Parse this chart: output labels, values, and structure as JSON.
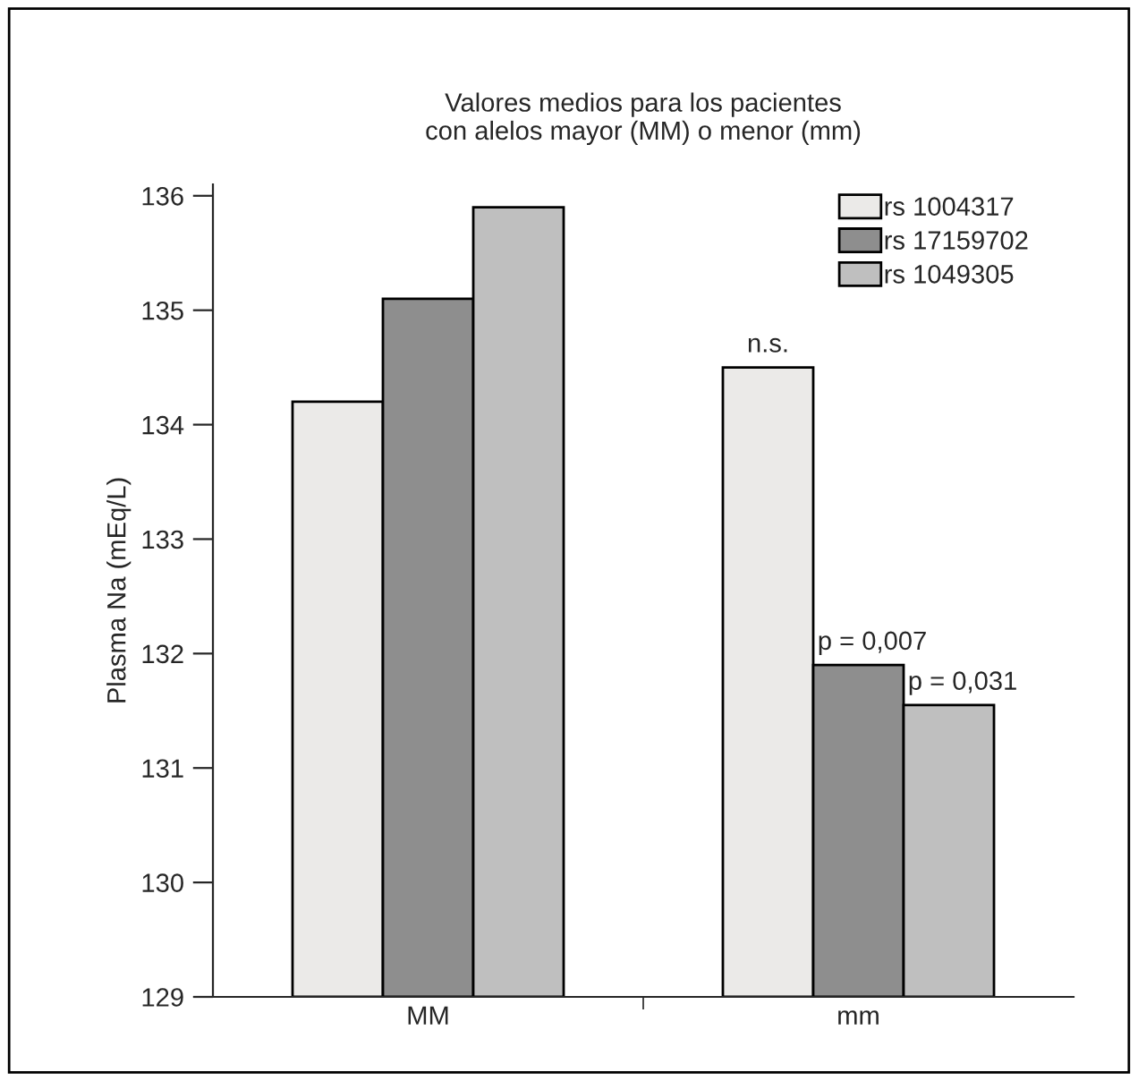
{
  "chart_data": {
    "type": "bar",
    "title": "Valores medios para los pacientes\ncon alelos mayor (MM) o menor (mm)",
    "ylabel": "Plasma Na (mEq/L)",
    "categories": [
      "MM",
      "mm"
    ],
    "series": [
      {
        "name": "rs 1004317",
        "color": "#ebeae8",
        "values": [
          134.2,
          134.5
        ]
      },
      {
        "name": "rs 17159702",
        "color": "#8e8e8e",
        "values": [
          135.1,
          131.9
        ]
      },
      {
        "name": "rs 1049305",
        "color": "#bfbfbf",
        "values": [
          135.9,
          131.55
        ]
      }
    ],
    "ylim": [
      129,
      136.1
    ],
    "yticks": [
      129,
      130,
      131,
      132,
      133,
      134,
      135,
      136
    ],
    "annotations": [
      "n.s.",
      "p = 0,007",
      "p = 0,031"
    ],
    "legend": "top right",
    "grid": false
  }
}
